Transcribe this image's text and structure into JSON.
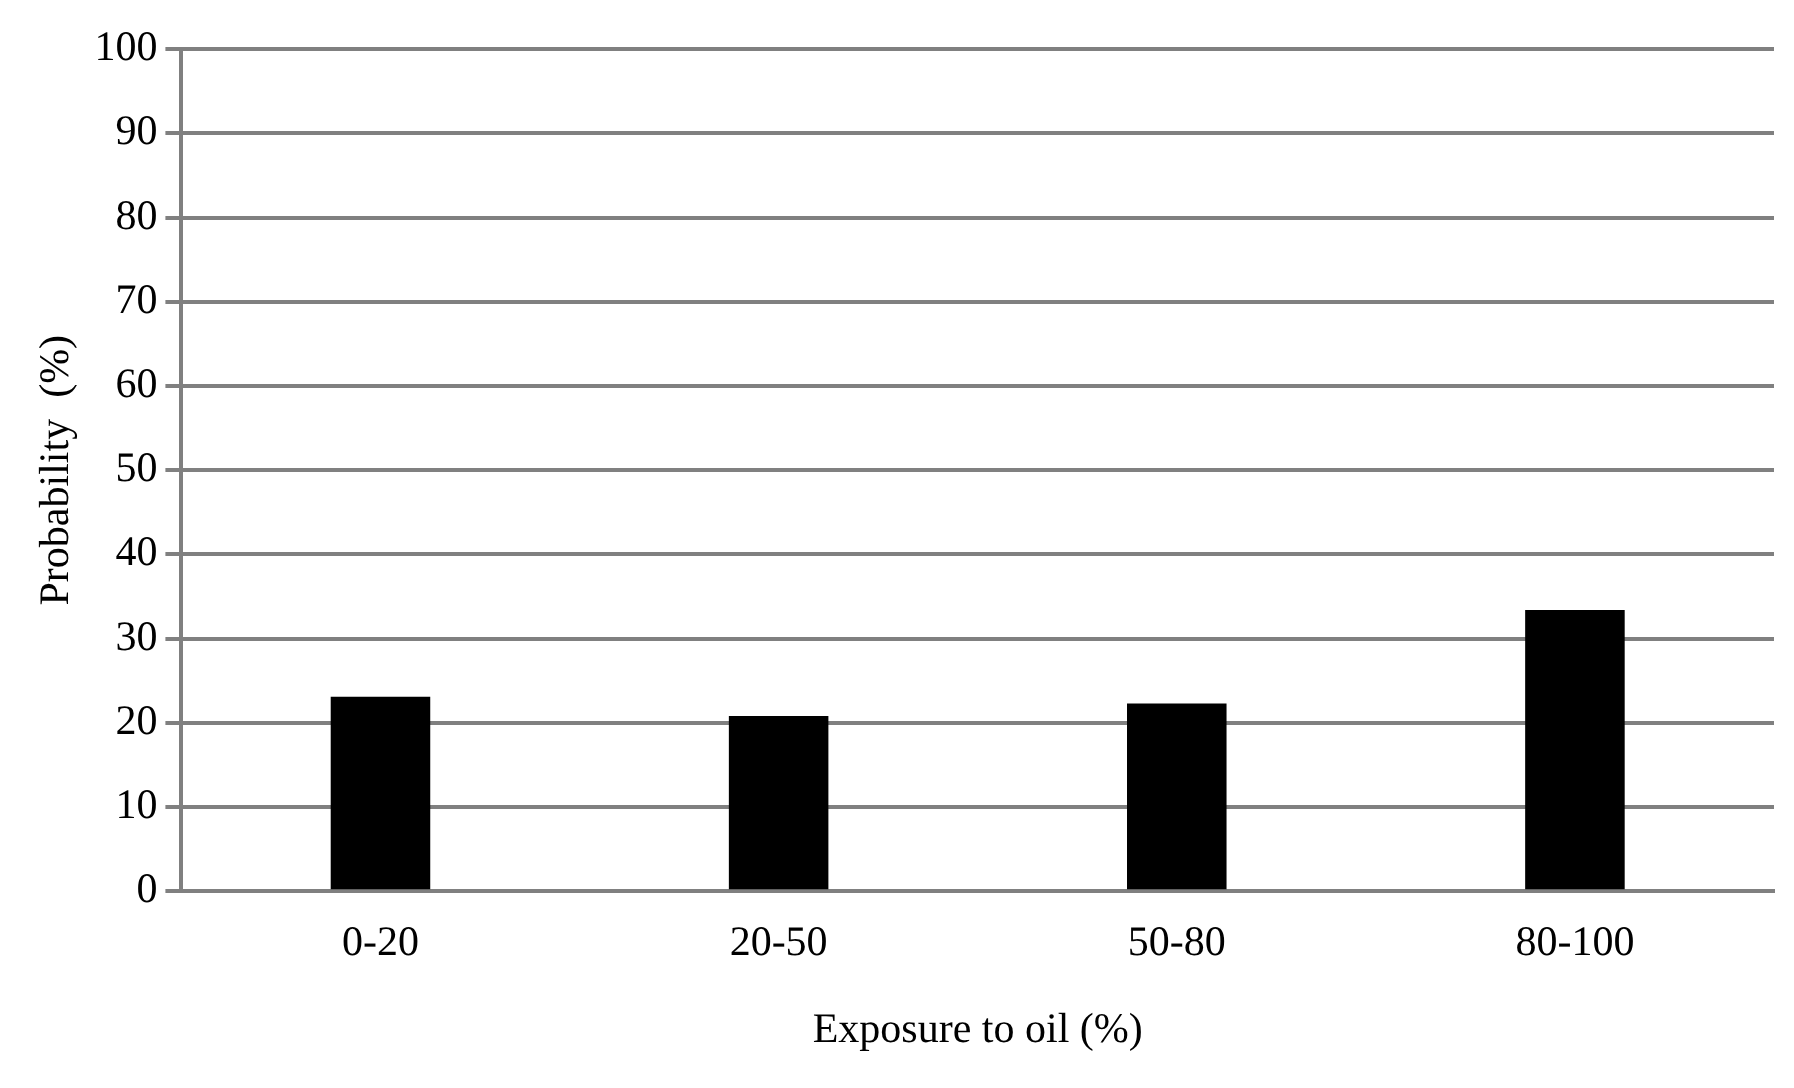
{
  "chart_data": {
    "type": "bar",
    "xlabel": "Exposure to oil (%)",
    "ylabel": "Probability  (%)",
    "categories": [
      "0-20",
      "20-50",
      "50-80",
      "80-100"
    ],
    "values": [
      23.1,
      20.8,
      22.3,
      33.4
    ],
    "color": "#000000",
    "ylim": [
      0,
      100
    ],
    "yticks": [
      0,
      10,
      20,
      30,
      40,
      50,
      60,
      70,
      80,
      90,
      100
    ],
    "grid": "y",
    "legend": false
  }
}
